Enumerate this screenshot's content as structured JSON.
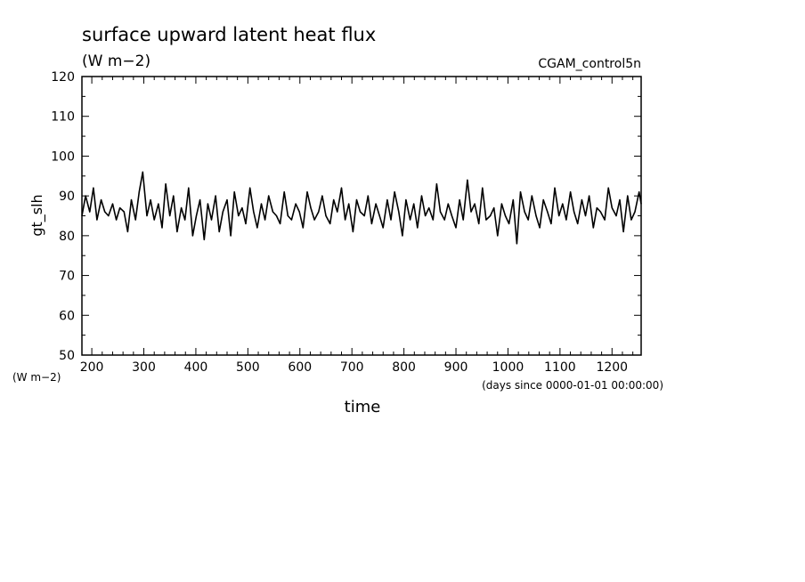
{
  "chart_data": {
    "type": "line",
    "title": "surface upward latent heat flux",
    "subtitle": "(W m−2)",
    "run_label": "CGAM_control5n",
    "ylabel": "gt_slh",
    "yunit": "(W m−2)",
    "xlabel": "time",
    "xunit": "(days since 0000-01-01 00:00:00)",
    "xlim": [
      181,
      1256
    ],
    "ylim": [
      50,
      120
    ],
    "xticks": [
      200,
      300,
      400,
      500,
      600,
      700,
      800,
      900,
      1000,
      1100,
      1200
    ],
    "yticks": [
      50,
      60,
      70,
      80,
      90,
      100,
      110,
      120
    ],
    "grid": false,
    "line_color": "#000000",
    "series": [
      {
        "x": [
          181,
          188,
          196,
          203,
          210,
          218,
          225,
          232,
          240,
          247,
          254,
          262,
          269,
          276,
          284,
          291,
          298,
          306,
          313,
          320,
          328,
          335,
          342,
          350,
          357,
          364,
          372,
          379,
          386,
          394,
          401,
          408,
          416,
          423,
          430,
          438,
          445,
          452,
          460,
          467,
          474,
          482,
          489,
          496,
          504,
          511,
          518,
          526,
          533,
          540,
          548,
          555,
          562,
          570,
          577,
          584,
          592,
          599,
          606,
          614,
          621,
          628,
          636,
          643,
          650,
          658,
          665,
          672,
          680,
          687,
          694,
          702,
          709,
          716,
          724,
          731,
          738,
          746,
          753,
          760,
          768,
          775,
          782,
          790,
          797,
          804,
          812,
          819,
          826,
          834,
          841,
          848,
          856,
          863,
          870,
          878,
          885,
          892,
          900,
          907,
          914,
          922,
          929,
          936,
          944,
          951,
          958,
          966,
          973,
          980,
          988,
          995,
          1002,
          1010,
          1017,
          1024,
          1032,
          1039,
          1046,
          1054,
          1061,
          1068,
          1076,
          1083,
          1090,
          1098,
          1105,
          1112,
          1120,
          1127,
          1134,
          1142,
          1149,
          1156,
          1164,
          1171,
          1178,
          1186,
          1193,
          1200,
          1208,
          1215,
          1222,
          1230,
          1237,
          1244,
          1252,
          1256
        ],
        "y": [
          85,
          90,
          86,
          92,
          84,
          89,
          86,
          85,
          88,
          84,
          87,
          86,
          81,
          89,
          84,
          91,
          96,
          85,
          89,
          84,
          88,
          82,
          93,
          85,
          90,
          81,
          87,
          84,
          92,
          80,
          85,
          89,
          79,
          88,
          84,
          90,
          81,
          86,
          89,
          80,
          91,
          85,
          87,
          83,
          92,
          86,
          82,
          88,
          84,
          90,
          86,
          85,
          83,
          91,
          85,
          84,
          88,
          86,
          82,
          91,
          87,
          84,
          86,
          90,
          85,
          83,
          89,
          86,
          92,
          84,
          88,
          81,
          89,
          86,
          85,
          90,
          83,
          88,
          85,
          82,
          89,
          84,
          91,
          86,
          80,
          89,
          84,
          88,
          82,
          90,
          85,
          87,
          84,
          93,
          86,
          84,
          88,
          85,
          82,
          89,
          84,
          94,
          86,
          88,
          83,
          92,
          84,
          85,
          87,
          80,
          88,
          85,
          83,
          89,
          78,
          91,
          86,
          84,
          90,
          85,
          82,
          89,
          86,
          83,
          92,
          85,
          88,
          84,
          91,
          86,
          83,
          89,
          85,
          90,
          82,
          87,
          86,
          84,
          92,
          87,
          85,
          89,
          81,
          90,
          84,
          86,
          91,
          88
        ]
      }
    ]
  }
}
